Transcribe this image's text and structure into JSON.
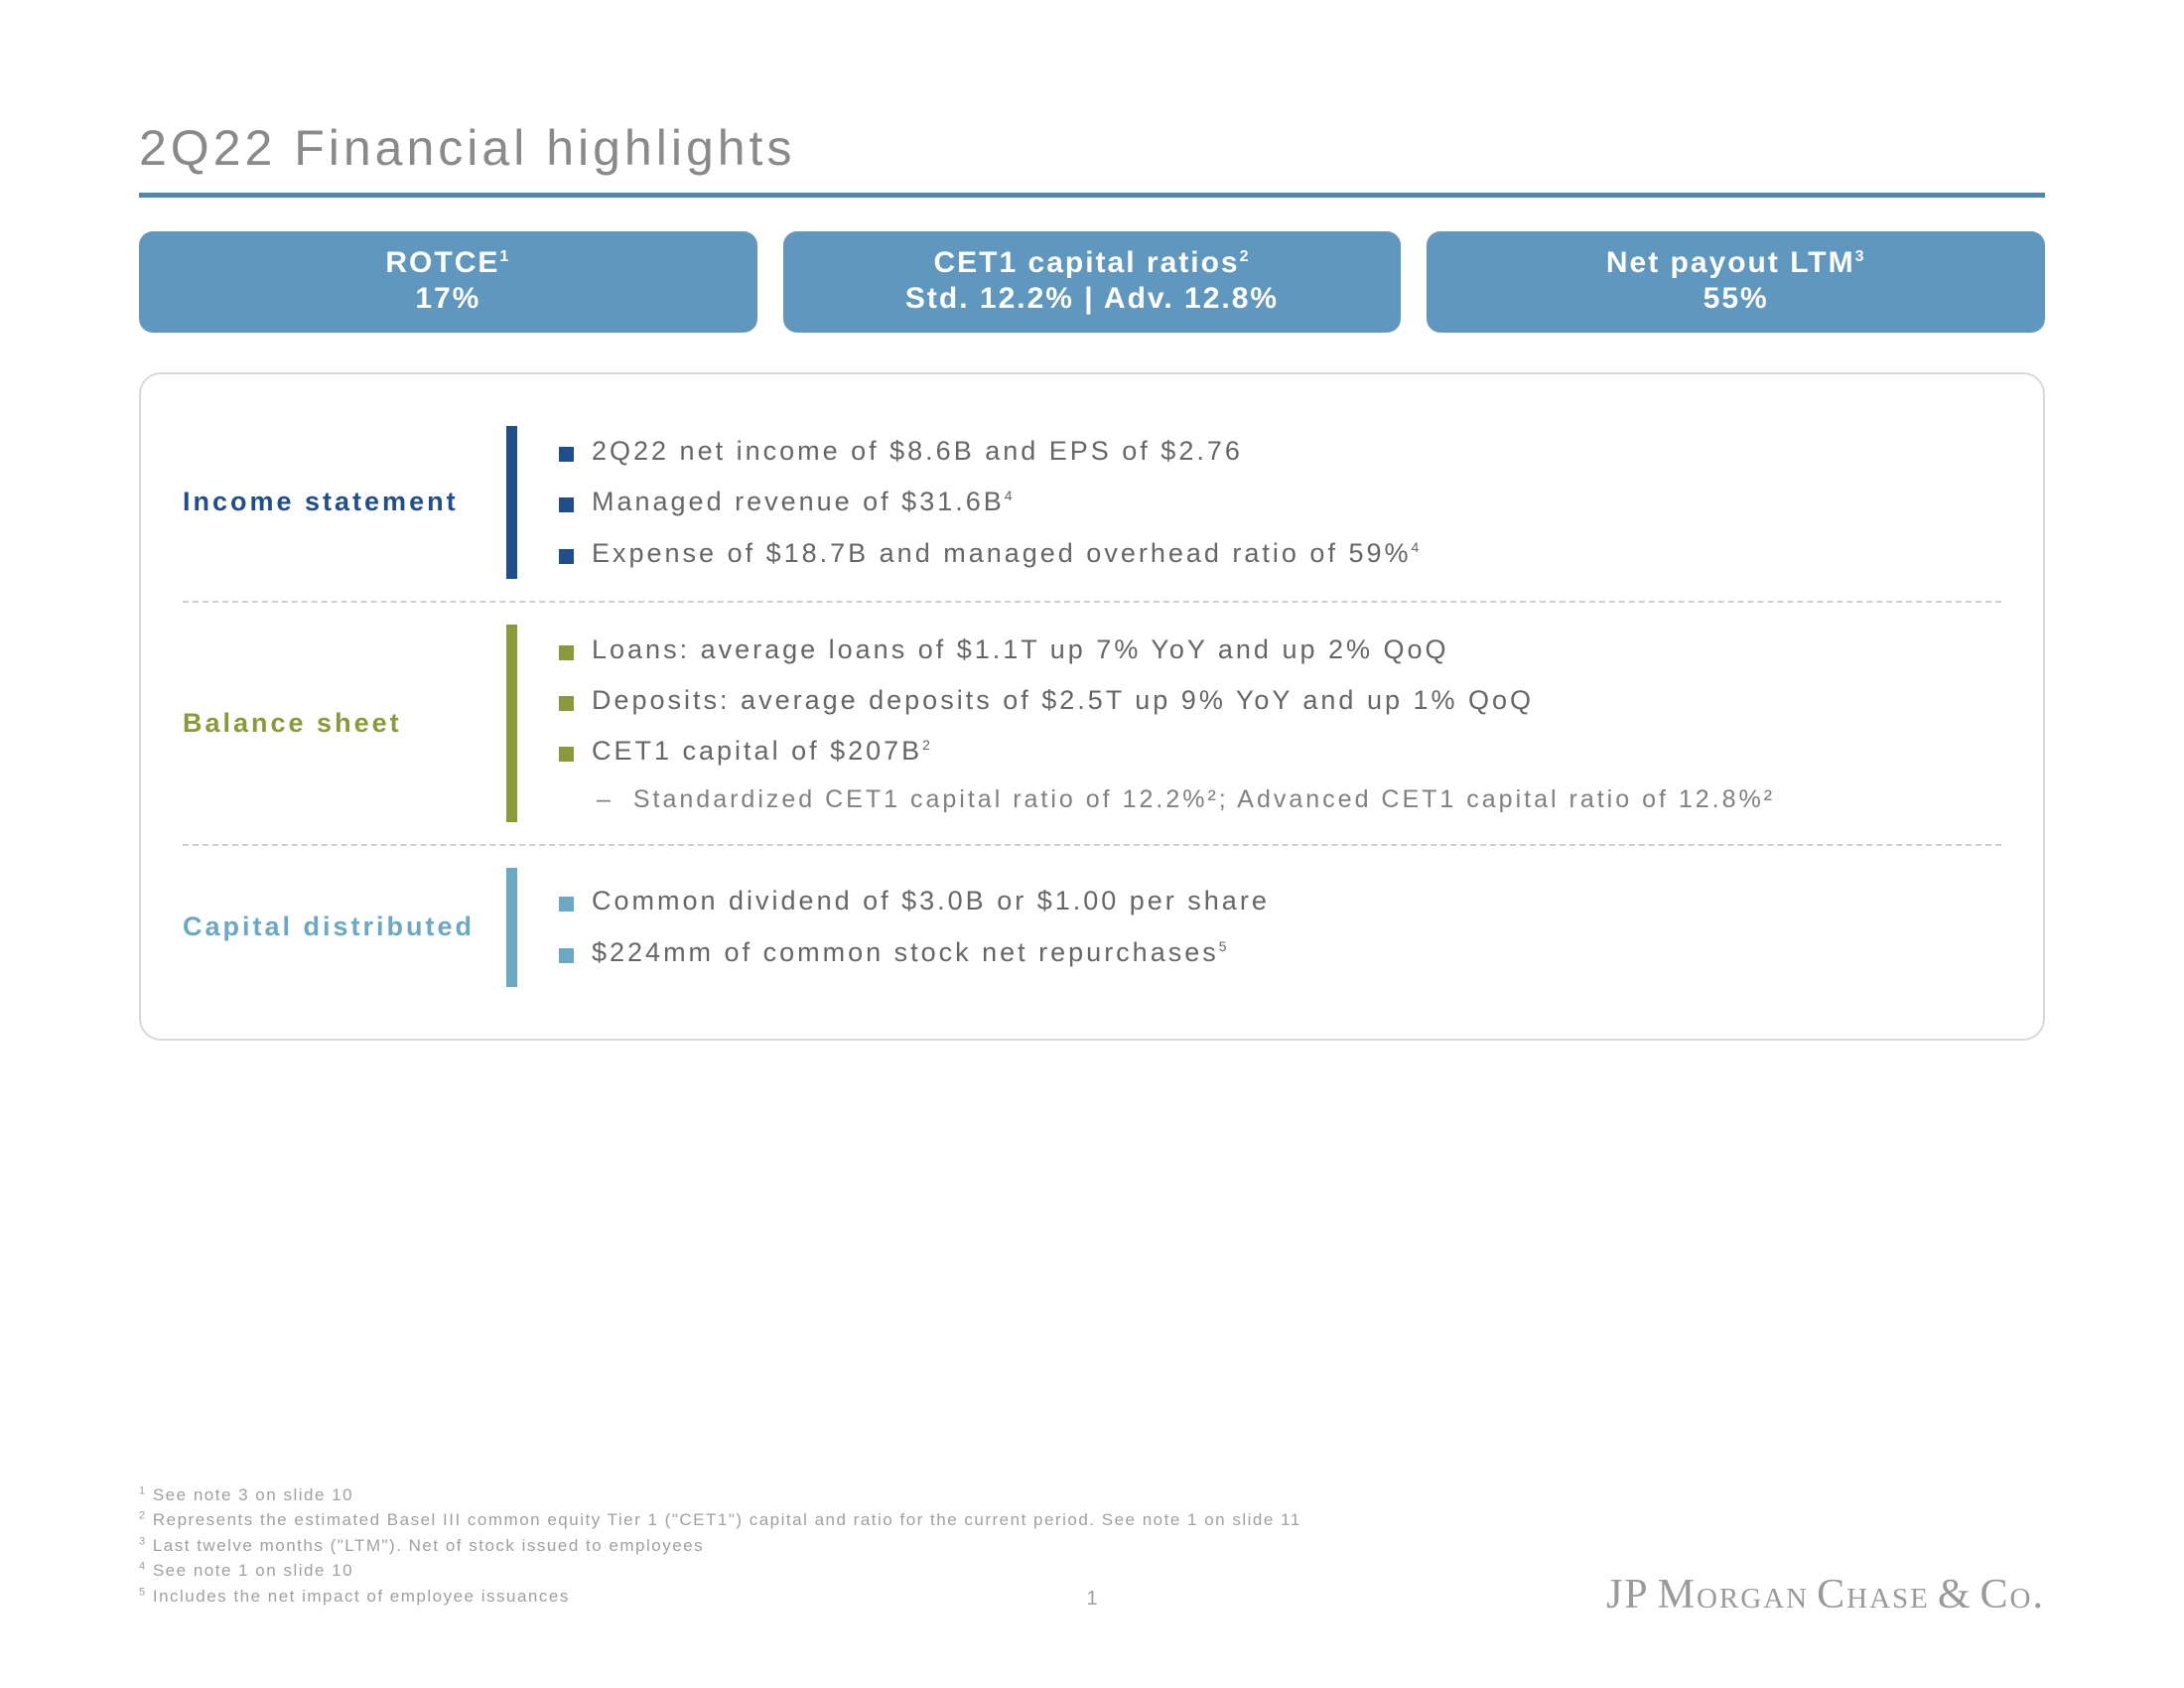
{
  "title": "2Q22 Financial highlights",
  "colors": {
    "title_rule": "#5087b1",
    "pill_bg": "#5f97bf",
    "income": "#1f4e8c",
    "balance": "#8a9a3a",
    "capital": "#6aa8c4",
    "text_gray": "#666666",
    "sub_gray": "#808080",
    "footnote_gray": "#a0a0a0",
    "border_gray": "#d9d9d9"
  },
  "pills": [
    {
      "title": "ROTCE",
      "sup": "1",
      "value": "17%"
    },
    {
      "title": "CET1 capital ratios",
      "sup": "2",
      "value": "Std. 12.2% | Adv. 12.8%"
    },
    {
      "title": "Net payout LTM",
      "sup": "3",
      "value": "55%"
    }
  ],
  "sections": [
    {
      "label": "Income statement",
      "color_key": "income",
      "items": [
        {
          "text": "2Q22 net income of $8.6B and EPS of $2.76"
        },
        {
          "text": "Managed revenue of $31.6B",
          "sup": "4"
        },
        {
          "text": "Expense of $18.7B and managed overhead ratio of 59%",
          "sup": "4"
        }
      ]
    },
    {
      "label": "Balance sheet",
      "color_key": "balance",
      "items": [
        {
          "text": "Loans: average loans of $1.1T up 7% YoY and up 2% QoQ"
        },
        {
          "text": "Deposits: average deposits of $2.5T up 9% YoY and up 1% QoQ"
        },
        {
          "text": "CET1 capital of $207B",
          "sup": "2",
          "sub": "Standardized CET1 capital ratio of 12.2%²; Advanced CET1 capital ratio of 12.8%²"
        }
      ]
    },
    {
      "label": "Capital distributed",
      "color_key": "capital",
      "items": [
        {
          "text": "Common dividend of $3.0B or $1.00 per share"
        },
        {
          "text": "$224mm of common stock net repurchases",
          "sup": "5"
        }
      ]
    }
  ],
  "footnotes": [
    {
      "n": "1",
      "text": "See note 3 on slide 10"
    },
    {
      "n": "2",
      "text": "Represents the estimated Basel III common equity Tier 1 (\"CET1\") capital and ratio for the current period. See note 1 on slide 11"
    },
    {
      "n": "3",
      "text": "Last twelve months (\"LTM\"). Net of stock issued to employees"
    },
    {
      "n": "4",
      "text": "See note 1 on slide 10"
    },
    {
      "n": "5",
      "text": "Includes the net impact of employee issuances"
    }
  ],
  "page_number": "1",
  "logo": {
    "jp": "JP",
    "morgan": "Morgan",
    "chase": "Chase",
    "amp": "&",
    "co": "Co."
  }
}
